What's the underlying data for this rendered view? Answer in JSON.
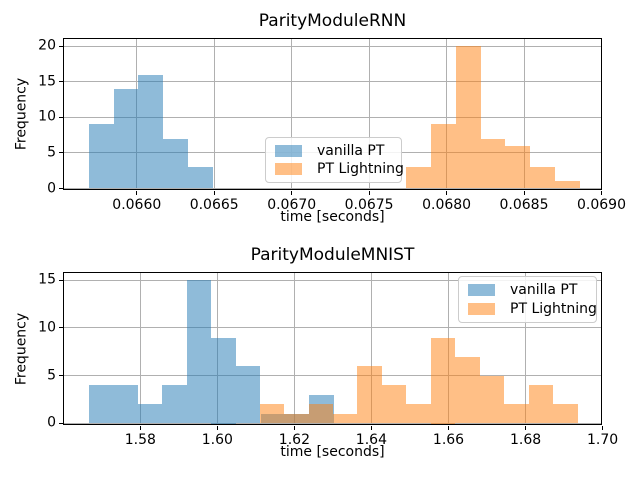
{
  "chart_data": [
    {
      "type": "histogram",
      "title": "ParityModuleRNN",
      "xlabel": "time [seconds]",
      "ylabel": "Frequency",
      "xlim": [
        0.06553,
        0.06901
      ],
      "ylim": [
        -0.35,
        21.0
      ],
      "grid": true,
      "legend_position": "center",
      "xticks": {
        "values": [
          0.066,
          0.0665,
          0.067,
          0.0675,
          0.068,
          0.0685,
          0.069
        ],
        "labels": [
          "0.0660",
          "0.0665",
          "0.0670",
          "0.0675",
          "0.0680",
          "0.0685",
          "0.0690"
        ]
      },
      "yticks": {
        "values": [
          0,
          5,
          10,
          15,
          20
        ],
        "labels": [
          "0",
          "5",
          "10",
          "15",
          "20"
        ]
      },
      "series": [
        {
          "name": "vanilla PT",
          "color": "rgba(31,119,180,0.5)",
          "bin_edges": [
            0.06569,
            0.06585,
            0.06601,
            0.06617,
            0.06633,
            0.06649
          ],
          "counts": [
            9,
            14,
            16,
            7,
            3
          ]
        },
        {
          "name": "PT Lightning",
          "color": "rgba(255,127,14,0.5)",
          "bin_edges": [
            0.06774,
            0.0679,
            0.06806,
            0.06822,
            0.06838,
            0.06854,
            0.0687,
            0.06886
          ],
          "counts": [
            3,
            9,
            20,
            7,
            6,
            3,
            1
          ]
        }
      ]
    },
    {
      "type": "histogram",
      "title": "ParityModuleMNIST",
      "xlabel": "time [seconds]",
      "ylabel": "Frequency",
      "xlim": [
        1.5602,
        1.7001
      ],
      "ylim": [
        -0.27,
        15.75
      ],
      "grid": true,
      "legend_position": "upper right",
      "xticks": {
        "values": [
          1.58,
          1.6,
          1.62,
          1.64,
          1.66,
          1.68,
          1.7
        ],
        "labels": [
          "1.58",
          "1.60",
          "1.62",
          "1.64",
          "1.66",
          "1.68",
          "1.70"
        ]
      },
      "yticks": {
        "values": [
          0,
          5,
          10,
          15
        ],
        "labels": [
          "0",
          "5",
          "10",
          "15"
        ]
      },
      "series": [
        {
          "name": "vanilla PT",
          "color": "rgba(31,119,180,0.5)",
          "bin_edges": [
            1.5666,
            1.573,
            1.5793,
            1.5857,
            1.5921,
            1.5984,
            1.6048,
            1.6112,
            1.6176,
            1.6239,
            1.6303
          ],
          "counts": [
            4,
            4,
            2,
            4,
            15,
            9,
            6,
            1,
            1,
            3
          ]
        },
        {
          "name": "PT Lightning",
          "color": "rgba(255,127,14,0.5)",
          "bin_edges": [
            1.611,
            1.6173,
            1.6237,
            1.63,
            1.6363,
            1.6427,
            1.649,
            1.6554,
            1.6617,
            1.6681,
            1.6744,
            1.6808,
            1.6871,
            1.6935
          ],
          "counts": [
            2,
            1,
            2,
            1,
            6,
            4,
            2,
            9,
            7,
            5,
            2,
            4,
            2
          ]
        }
      ]
    }
  ]
}
